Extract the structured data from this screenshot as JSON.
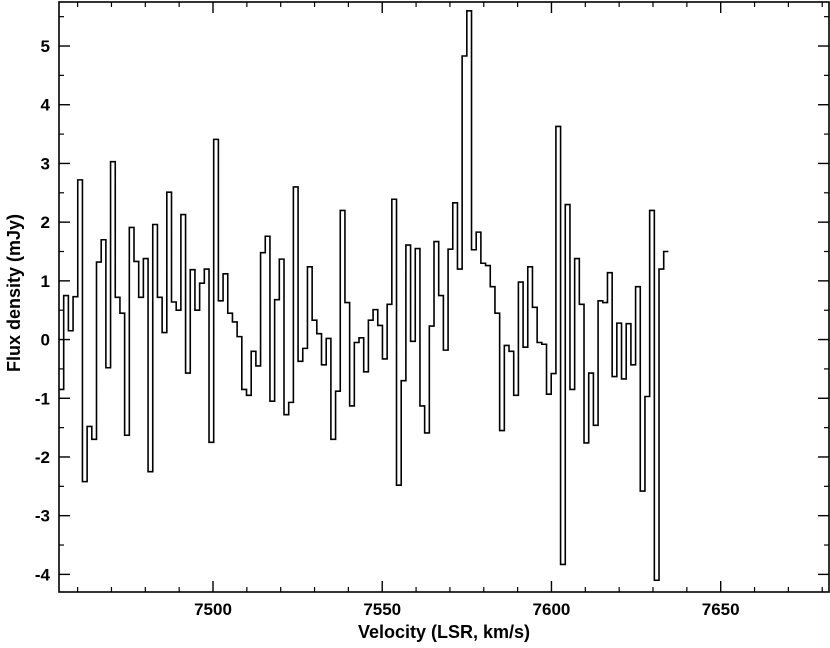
{
  "chart_data": {
    "type": "line",
    "style": "step",
    "title": "",
    "xlabel": "Velocity (LSR, km/s)",
    "ylabel": "Flux density (mJy)",
    "xlim": [
      7454.5,
      7682
    ],
    "ylim": [
      -4.3,
      5.75
    ],
    "grid": false,
    "legend": "none",
    "line_color": "#000000",
    "x_ticks": [
      7500,
      7550,
      7600,
      7650
    ],
    "x_tick_labels": [
      "7500",
      "7550",
      "7600",
      "7650"
    ],
    "y_ticks": [
      -4,
      -3,
      -2,
      -1,
      0,
      1,
      2,
      3,
      4,
      5
    ],
    "y_tick_labels": [
      "-4",
      "-3",
      "-2",
      "-1",
      "0",
      "1",
      "2",
      "3",
      "4",
      "5"
    ],
    "bin_width": 1.385,
    "x_start": 7454.5,
    "values": [
      -0.85,
      0.75,
      0.15,
      0.73,
      2.72,
      -2.42,
      -1.48,
      -1.7,
      1.32,
      1.7,
      -0.48,
      3.03,
      0.72,
      0.45,
      -1.63,
      1.91,
      1.33,
      0.72,
      1.38,
      -2.25,
      1.96,
      0.72,
      0.12,
      2.51,
      0.64,
      0.5,
      2.13,
      -0.57,
      1.19,
      0.5,
      0.96,
      1.2,
      -1.75,
      3.41,
      0.66,
      1.12,
      0.45,
      0.3,
      0.05,
      -0.85,
      -0.95,
      -0.2,
      -0.45,
      1.48,
      1.76,
      -1.05,
      0.68,
      1.37,
      -1.28,
      -1.07,
      2.6,
      -0.37,
      -0.15,
      1.24,
      0.33,
      0.1,
      -0.43,
      0.02,
      -1.7,
      -0.88,
      2.2,
      0.63,
      -1.13,
      -0.05,
      0.03,
      -0.55,
      0.33,
      0.51,
      0.24,
      -0.33,
      0.6,
      2.39,
      -2.48,
      -0.7,
      1.61,
      -0.03,
      1.55,
      -1.13,
      -1.59,
      0.23,
      1.67,
      0.75,
      -0.18,
      1.54,
      2.33,
      1.2,
      4.83,
      5.6,
      1.53,
      1.83,
      1.3,
      1.26,
      0.9,
      0.45,
      -1.55,
      -0.1,
      -0.2,
      -0.95,
      0.98,
      -0.13,
      1.24,
      0.55,
      -0.05,
      -0.08,
      -0.93,
      -0.58,
      3.63,
      -3.83,
      2.3,
      -0.85,
      1.38,
      0.6,
      -1.76,
      -0.57,
      -1.46,
      0.66,
      0.63,
      1.14,
      -0.63,
      0.28,
      -0.67,
      0.27,
      -0.43,
      0.9,
      -2.58,
      -0.97,
      2.2,
      -4.1,
      1.2,
      1.5
    ]
  }
}
